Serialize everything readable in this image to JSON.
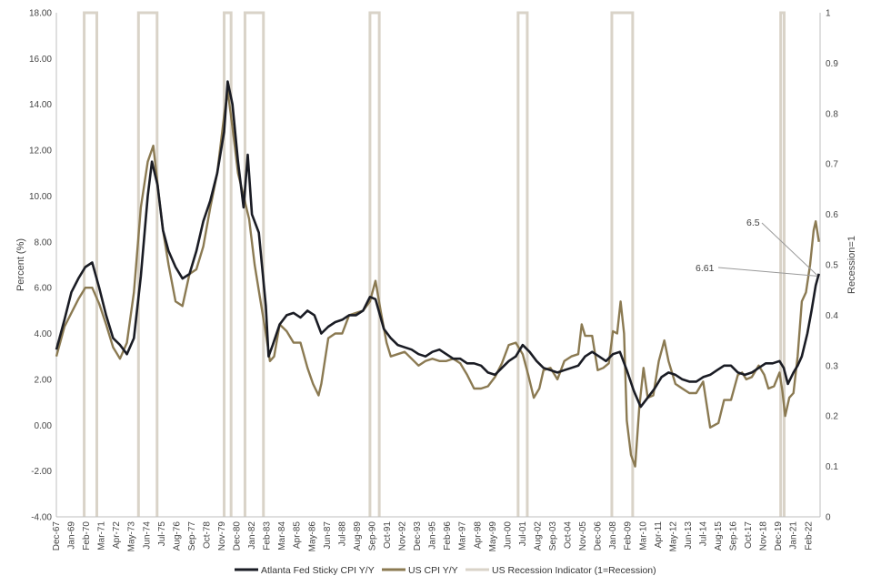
{
  "chart_data": {
    "type": "line",
    "title": "",
    "ylabel": "Percent (%)",
    "y2label": "Recession=1",
    "ylim": [
      -4,
      18
    ],
    "y2lim": [
      0,
      1
    ],
    "xlim": [
      1967.917,
      2022.917
    ],
    "grid": false,
    "legend_position": "bottom-center",
    "y_ticks": [
      "-4.00",
      "-2.00",
      "0.00",
      "2.00",
      "4.00",
      "6.00",
      "8.00",
      "10.00",
      "12.00",
      "14.00",
      "16.00",
      "18.00"
    ],
    "y2_ticks": [
      "0",
      "0.1",
      "0.2",
      "0.3",
      "0.4",
      "0.5",
      "0.6",
      "0.7",
      "0.8",
      "0.9",
      "1"
    ],
    "x_ticks": [
      "Dec-67",
      "Jan-69",
      "Feb-70",
      "Mar-71",
      "Apr-72",
      "May-73",
      "Jun-74",
      "Jul-75",
      "Aug-76",
      "Sep-77",
      "Oct-78",
      "Nov-79",
      "Dec-80",
      "Jan-82",
      "Feb-83",
      "Mar-84",
      "Apr-85",
      "May-86",
      "Jun-87",
      "Jul-88",
      "Aug-89",
      "Sep-90",
      "Oct-91",
      "Nov-92",
      "Dec-93",
      "Jan-95",
      "Feb-96",
      "Mar-97",
      "Apr-98",
      "May-99",
      "Jun-00",
      "Jul-01",
      "Aug-02",
      "Sep-03",
      "Oct-04",
      "Nov-05",
      "Dec-06",
      "Jan-08",
      "Feb-09",
      "Mar-10",
      "Apr-11",
      "May-12",
      "Jun-13",
      "Jul-14",
      "Aug-15",
      "Sep-16",
      "Oct-17",
      "Nov-18",
      "Dec-19",
      "Jan-21",
      "Feb-22"
    ],
    "series": [
      {
        "name": "Atlanta Fed Sticky CPI Y/Y",
        "color": "#1a1c24",
        "axis": "left",
        "x": [
          1967.92,
          1968.5,
          1969.0,
          1969.5,
          1970.0,
          1970.5,
          1971.0,
          1971.5,
          1972.0,
          1972.5,
          1973.0,
          1973.5,
          1974.0,
          1974.5,
          1974.8,
          1975.2,
          1975.6,
          1976.0,
          1976.5,
          1977.0,
          1977.5,
          1978.0,
          1978.5,
          1979.0,
          1979.5,
          1980.0,
          1980.25,
          1980.6,
          1981.0,
          1981.4,
          1981.7,
          1982.0,
          1982.5,
          1983.0,
          1983.2,
          1983.5,
          1984.0,
          1984.5,
          1985.0,
          1985.5,
          1986.0,
          1986.5,
          1987.0,
          1987.5,
          1988.0,
          1988.5,
          1989.0,
          1989.5,
          1990.0,
          1990.5,
          1990.9,
          1991.5,
          1992.0,
          1992.5,
          1993.0,
          1993.5,
          1994.0,
          1994.5,
          1995.0,
          1995.5,
          1996.0,
          1996.5,
          1997.0,
          1997.5,
          1998.0,
          1998.5,
          1999.0,
          1999.5,
          2000.0,
          2000.5,
          2001.0,
          2001.5,
          2002.0,
          2002.5,
          2003.0,
          2003.5,
          2004.0,
          2004.5,
          2005.0,
          2005.5,
          2006.0,
          2006.5,
          2007.0,
          2007.5,
          2008.0,
          2008.5,
          2009.0,
          2009.5,
          2010.0,
          2010.5,
          2011.0,
          2011.5,
          2012.0,
          2012.5,
          2013.0,
          2013.5,
          2014.0,
          2014.5,
          2015.0,
          2015.5,
          2016.0,
          2016.5,
          2017.0,
          2017.5,
          2018.0,
          2018.5,
          2019.0,
          2019.5,
          2020.0,
          2020.3,
          2020.6,
          2021.0,
          2021.3,
          2021.6,
          2022.0,
          2022.3,
          2022.6,
          2022.83
        ],
        "y": [
          3.3,
          4.6,
          5.8,
          6.4,
          6.9,
          7.1,
          6.0,
          4.8,
          3.8,
          3.5,
          3.1,
          3.8,
          6.5,
          10.0,
          11.5,
          10.5,
          8.5,
          7.6,
          6.9,
          6.4,
          6.6,
          7.6,
          8.9,
          9.8,
          11.0,
          12.8,
          15.0,
          14.0,
          11.5,
          9.5,
          11.8,
          9.2,
          8.4,
          5.2,
          3.0,
          3.5,
          4.4,
          4.8,
          4.9,
          4.7,
          5.0,
          4.8,
          4.0,
          4.3,
          4.5,
          4.6,
          4.8,
          4.8,
          5.0,
          5.6,
          5.5,
          4.2,
          3.8,
          3.5,
          3.4,
          3.3,
          3.1,
          3.0,
          3.2,
          3.3,
          3.1,
          2.9,
          2.9,
          2.7,
          2.7,
          2.6,
          2.3,
          2.2,
          2.5,
          2.8,
          3.0,
          3.5,
          3.2,
          2.8,
          2.5,
          2.4,
          2.3,
          2.4,
          2.5,
          2.6,
          3.0,
          3.2,
          3.0,
          2.8,
          3.1,
          3.2,
          2.4,
          1.5,
          0.8,
          1.2,
          1.6,
          2.1,
          2.3,
          2.2,
          2.0,
          1.9,
          1.9,
          2.1,
          2.2,
          2.4,
          2.6,
          2.6,
          2.3,
          2.2,
          2.3,
          2.5,
          2.7,
          2.7,
          2.8,
          2.5,
          1.8,
          2.3,
          2.6,
          3.0,
          4.0,
          5.0,
          6.1,
          6.61
        ]
      },
      {
        "name": "US CPI Y/Y",
        "color": "#8b7a52",
        "axis": "left",
        "x": [
          1967.92,
          1968.5,
          1969.0,
          1969.5,
          1970.0,
          1970.5,
          1971.0,
          1971.5,
          1972.0,
          1972.5,
          1973.0,
          1973.5,
          1974.0,
          1974.5,
          1974.9,
          1975.3,
          1975.6,
          1976.0,
          1976.5,
          1977.0,
          1977.5,
          1978.0,
          1978.5,
          1979.0,
          1979.5,
          1980.0,
          1980.25,
          1980.6,
          1981.0,
          1981.4,
          1981.8,
          1982.2,
          1982.6,
          1983.0,
          1983.3,
          1983.6,
          1984.0,
          1984.5,
          1985.0,
          1985.5,
          1986.0,
          1986.4,
          1986.8,
          1987.0,
          1987.5,
          1988.0,
          1988.5,
          1989.0,
          1989.5,
          1990.0,
          1990.5,
          1990.9,
          1991.3,
          1991.7,
          1992.0,
          1992.5,
          1993.0,
          1993.5,
          1994.0,
          1994.5,
          1995.0,
          1995.5,
          1996.0,
          1996.5,
          1997.0,
          1997.5,
          1998.0,
          1998.5,
          1999.0,
          1999.5,
          2000.0,
          2000.5,
          2001.0,
          2001.5,
          2001.9,
          2002.3,
          2002.7,
          2003.0,
          2003.5,
          2004.0,
          2004.5,
          2005.0,
          2005.5,
          2005.75,
          2006.0,
          2006.5,
          2006.9,
          2007.3,
          2007.7,
          2008.0,
          2008.3,
          2008.55,
          2008.8,
          2009.0,
          2009.3,
          2009.6,
          2009.9,
          2010.2,
          2010.5,
          2010.9,
          2011.3,
          2011.7,
          2012.0,
          2012.5,
          2013.0,
          2013.5,
          2014.0,
          2014.5,
          2015.0,
          2015.3,
          2015.6,
          2016.0,
          2016.5,
          2017.0,
          2017.3,
          2017.6,
          2018.0,
          2018.5,
          2018.9,
          2019.2,
          2019.6,
          2020.0,
          2020.2,
          2020.4,
          2020.7,
          2021.0,
          2021.3,
          2021.6,
          2021.9,
          2022.2,
          2022.45,
          2022.6,
          2022.83
        ],
        "y": [
          3.0,
          4.3,
          4.9,
          5.5,
          6.0,
          6.0,
          5.3,
          4.4,
          3.4,
          2.9,
          3.6,
          5.8,
          9.5,
          11.5,
          12.2,
          10.0,
          8.5,
          7.0,
          5.4,
          5.2,
          6.6,
          6.8,
          7.8,
          9.5,
          11.0,
          13.5,
          14.6,
          13.0,
          11.0,
          10.0,
          9.0,
          7.0,
          5.5,
          4.0,
          2.8,
          3.0,
          4.4,
          4.1,
          3.6,
          3.6,
          2.5,
          1.8,
          1.3,
          1.8,
          3.8,
          4.0,
          4.0,
          4.8,
          4.9,
          5.0,
          5.4,
          6.3,
          4.9,
          3.6,
          3.0,
          3.1,
          3.2,
          2.9,
          2.6,
          2.8,
          2.9,
          2.8,
          2.8,
          2.9,
          2.7,
          2.2,
          1.6,
          1.6,
          1.7,
          2.1,
          2.7,
          3.5,
          3.6,
          3.1,
          2.2,
          1.2,
          1.6,
          2.4,
          2.5,
          2.0,
          2.8,
          3.0,
          3.1,
          4.4,
          3.9,
          3.9,
          2.4,
          2.5,
          2.7,
          4.1,
          4.0,
          5.4,
          4.0,
          0.2,
          -1.3,
          -1.8,
          0.8,
          2.5,
          1.2,
          1.3,
          2.8,
          3.7,
          2.8,
          1.8,
          1.6,
          1.4,
          1.4,
          1.9,
          -0.1,
          0.0,
          0.1,
          1.1,
          1.1,
          2.2,
          2.3,
          2.0,
          2.1,
          2.6,
          2.2,
          1.6,
          1.7,
          2.3,
          1.5,
          0.4,
          1.2,
          1.4,
          3.0,
          5.4,
          5.8,
          7.0,
          8.5,
          8.9,
          8.0
        ]
      }
    ],
    "recessions": [
      {
        "start": 1969.92,
        "end": 1970.83
      },
      {
        "start": 1973.83,
        "end": 1975.17
      },
      {
        "start": 1980.0,
        "end": 1980.5
      },
      {
        "start": 1981.5,
        "end": 1982.83
      },
      {
        "start": 1990.5,
        "end": 1991.17
      },
      {
        "start": 2001.17,
        "end": 2001.83
      },
      {
        "start": 2007.92,
        "end": 2009.42
      },
      {
        "start": 2020.08,
        "end": 2020.33
      }
    ],
    "recession_series_name": "US Recession Indicator (1=Recession)",
    "recession_color": "#d9d3c8",
    "annotations": [
      {
        "label": "6.5",
        "value": 6.5
      },
      {
        "label": "6.61",
        "value": 6.61
      }
    ]
  }
}
